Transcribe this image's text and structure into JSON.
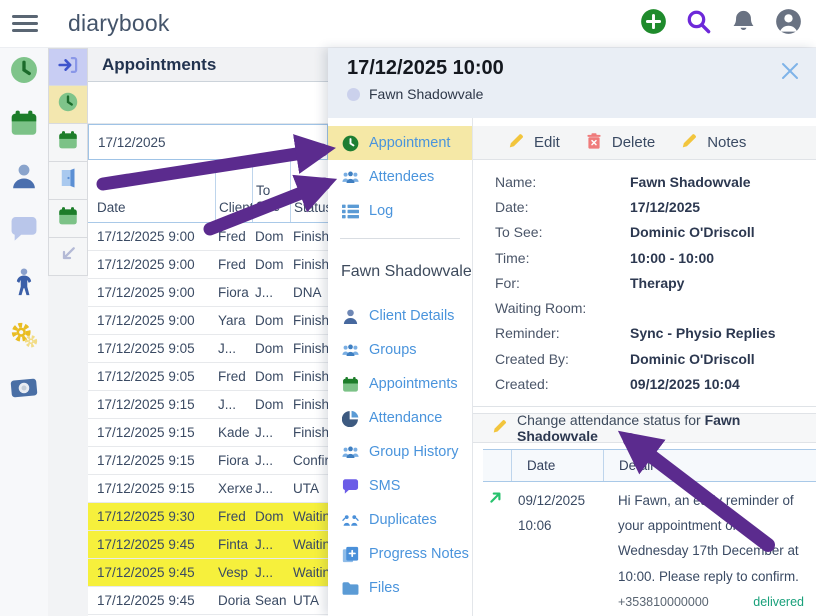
{
  "app": {
    "title": "diarybook"
  },
  "topbar": {
    "icons": [
      {
        "name": "add-button",
        "icon": "plus-circle"
      },
      {
        "name": "search-button",
        "icon": "search"
      },
      {
        "name": "notifications-button",
        "icon": "bell"
      },
      {
        "name": "account-button",
        "icon": "user-circle"
      }
    ]
  },
  "sidebar": {
    "items": [
      {
        "name": "diary-clock",
        "icon": "clock-light"
      },
      {
        "name": "calendar",
        "icon": "calendar-green"
      },
      {
        "name": "clients",
        "icon": "person-blue"
      },
      {
        "name": "messages",
        "icon": "chat-light"
      },
      {
        "name": "patient",
        "icon": "person-standing"
      },
      {
        "name": "settings",
        "icon": "gears-yellow"
      },
      {
        "name": "payments",
        "icon": "camera-blue"
      }
    ]
  },
  "toolstrip": {
    "items": [
      {
        "name": "check-in",
        "icon": "login-arrow",
        "bg": "#c8cdf3"
      },
      {
        "name": "appointments-view",
        "icon": "clock-light",
        "bg": "#f3e7af"
      },
      {
        "name": "calendar-view",
        "icon": "calendar-green",
        "bg": "#f5f6f7"
      },
      {
        "name": "room-view",
        "icon": "door-blue",
        "bg": "#f5f6f7"
      },
      {
        "name": "calendar-view-2",
        "icon": "calendar-green",
        "bg": "#f5f6f7"
      },
      {
        "name": "collapse",
        "icon": "arrow-down-left",
        "bg": "#f5f6f7"
      }
    ]
  },
  "appointments": {
    "title": "Appointments",
    "date_filter": "17/12/2025",
    "columns": [
      "Date",
      "Client",
      "To See",
      "Status"
    ],
    "rows": [
      {
        "date": "17/12/2025 9:00",
        "client": "Fred",
        "to_see": "Dom",
        "status": "Finished",
        "highlight": false
      },
      {
        "date": "17/12/2025 9:00",
        "client": "Fred",
        "to_see": "Dom",
        "status": "Finished",
        "highlight": false
      },
      {
        "date": "17/12/2025 9:00",
        "client": "Fiora",
        "to_see": "J...",
        "status": "DNA",
        "highlight": false
      },
      {
        "date": "17/12/2025 9:00",
        "client": "Yara",
        "to_see": "Dom",
        "status": "Finished",
        "highlight": false
      },
      {
        "date": "17/12/2025 9:05",
        "client": "J...",
        "to_see": "Dom",
        "status": "Finished",
        "highlight": false
      },
      {
        "date": "17/12/2025 9:05",
        "client": "Fred",
        "to_see": "Dom",
        "status": "Finished",
        "highlight": false
      },
      {
        "date": "17/12/2025 9:15",
        "client": "J...",
        "to_see": "Dom",
        "status": "Finished",
        "highlight": false
      },
      {
        "date": "17/12/2025 9:15",
        "client": "Kade",
        "to_see": "J...",
        "status": "Finished",
        "highlight": false
      },
      {
        "date": "17/12/2025 9:15",
        "client": "Fiora",
        "to_see": "J...",
        "status": "Confirmed",
        "highlight": false
      },
      {
        "date": "17/12/2025 9:15",
        "client": "Xerxe",
        "to_see": "J...",
        "status": "UTA",
        "highlight": false
      },
      {
        "date": "17/12/2025 9:30",
        "client": "Fred",
        "to_see": "Dom",
        "status": "Waiting",
        "highlight": true
      },
      {
        "date": "17/12/2025 9:45",
        "client": "Finta",
        "to_see": "J...",
        "status": "Waiting",
        "highlight": true
      },
      {
        "date": "17/12/2025 9:45",
        "client": "Vesp",
        "to_see": "J...",
        "status": "Waiting",
        "highlight": true
      },
      {
        "date": "17/12/2025 9:45",
        "client": "Doria",
        "to_see": "Sean",
        "status": "UTA",
        "highlight": false
      }
    ]
  },
  "detail": {
    "title": "17/12/2025 10:00",
    "client": "Fawn Shadowvale",
    "tabs": [
      {
        "label": "Appointment",
        "icon": "clock-dark",
        "selected": true
      },
      {
        "label": "Attendees",
        "icon": "people-blue",
        "selected": false
      },
      {
        "label": "Log",
        "icon": "list-blue",
        "selected": false
      }
    ],
    "client_section": {
      "title": "Fawn Shadowvale",
      "items": [
        {
          "label": "Client Details",
          "icon": "person-dark"
        },
        {
          "label": "Groups",
          "icon": "people-blue"
        },
        {
          "label": "Appointments",
          "icon": "calendar-green"
        },
        {
          "label": "Attendance",
          "icon": "pie-chart"
        },
        {
          "label": "Group History",
          "icon": "people-blue"
        },
        {
          "label": "SMS",
          "icon": "chat-purple"
        },
        {
          "label": "Duplicates",
          "icon": "duplicates"
        },
        {
          "label": "Progress Notes",
          "icon": "progress-note"
        },
        {
          "label": "Files",
          "icon": "folder-blue"
        }
      ]
    },
    "actions": [
      {
        "label": "Edit",
        "icon": "pencil-yellow"
      },
      {
        "label": "Delete",
        "icon": "trash-red"
      },
      {
        "label": "Notes",
        "icon": "pencil-yellow"
      }
    ],
    "fields": [
      {
        "label": "Name:",
        "value": "Fawn Shadowvale"
      },
      {
        "label": "Date:",
        "value": "17/12/2025"
      },
      {
        "label": "To See:",
        "value": "Dominic O'Driscoll"
      },
      {
        "label": "Time:",
        "value": "10:00 - 10:00"
      },
      {
        "label": "For:",
        "value": "Therapy"
      },
      {
        "label": "Waiting Room:",
        "value": ""
      },
      {
        "label": "Reminder:",
        "value": "Sync - Physio Replies"
      },
      {
        "label": "Created By:",
        "value": "Dominic O'Driscoll"
      },
      {
        "label": "Created:",
        "value": "09/12/2025 10:04"
      }
    ],
    "attendance_action": {
      "prefix": "Change attendance status for",
      "name": "Fawn Shadowvale"
    },
    "messages": {
      "columns": [
        "Date",
        "Detail"
      ],
      "rows": [
        {
          "direction": "outgoing",
          "date": "09/12/2025",
          "time": "10:06",
          "text": "Hi Fawn, an early reminder of your appointment on Wednesday 17th December at 10:00. Please reply to confirm.",
          "phone": "+353810000000",
          "status": "delivered"
        }
      ]
    }
  },
  "colors": {
    "annotation_arrow": "#5b2b8e",
    "row_highlight": "#f6f03c",
    "nav_selected": "#f5e8a6",
    "link_blue": "#4a94dc",
    "delivered_green": "#18a07a"
  }
}
